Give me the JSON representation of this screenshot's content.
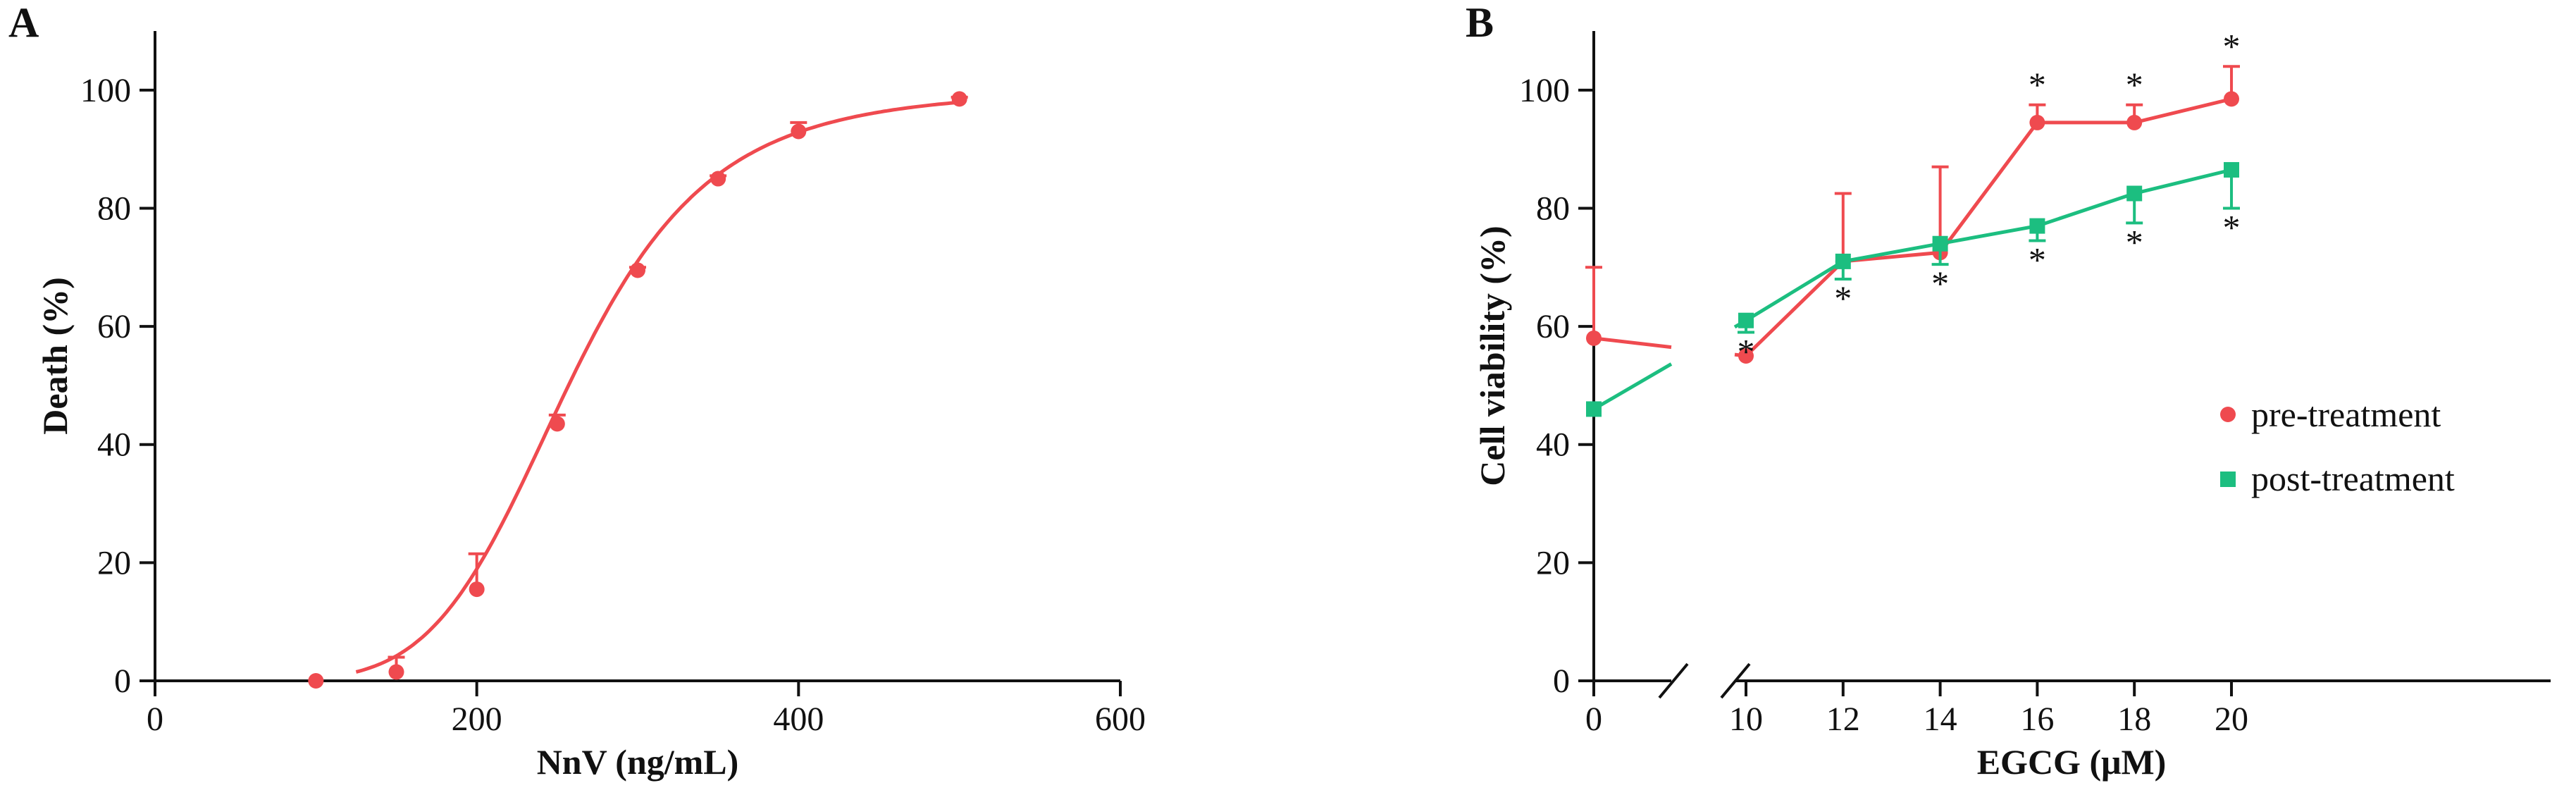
{
  "colors": {
    "pre": "#ef4a4f",
    "post": "#1cbe80",
    "axis": "#111111"
  },
  "chart_data": [
    {
      "panel": "A",
      "type": "line",
      "xlabel": "NnV (ng/mL)",
      "ylabel": "Death (%)",
      "xlim": [
        0,
        600
      ],
      "ylim": [
        0,
        110
      ],
      "xticks": [
        0,
        200,
        400,
        600
      ],
      "yticks": [
        0,
        20,
        40,
        60,
        80,
        100
      ],
      "fit_curve": {
        "model": "logistic",
        "bottom": 0,
        "top": 100,
        "ec50": 257,
        "hill": 5.8,
        "x_start": 125,
        "x_end": 500
      },
      "series": [
        {
          "x": [
            100,
            150,
            200,
            250,
            300,
            350,
            400,
            500
          ],
          "y": [
            0,
            1.5,
            15.5,
            43.5,
            69.5,
            85,
            93,
            98.5
          ],
          "error": [
            0,
            2.5,
            6,
            1.5,
            0.5,
            0.5,
            1.5,
            0.3
          ]
        }
      ]
    },
    {
      "panel": "B",
      "type": "line",
      "xlabel": "EGCG (μM)",
      "ylabel": "Cell viability (%)",
      "ylim": [
        0,
        110
      ],
      "xticks": [
        0,
        10,
        12,
        14,
        16,
        18,
        20
      ],
      "yticks": [
        0,
        20,
        40,
        60,
        80,
        100
      ],
      "axis_break_x": [
        0,
        10
      ],
      "legend_position": "right",
      "series": [
        {
          "name": "pre-treatment",
          "color": "#ef4a4f",
          "marker": "circle",
          "x": [
            0,
            10,
            12,
            14,
            16,
            18,
            20
          ],
          "y": [
            58,
            55,
            71,
            72.5,
            94.5,
            94.5,
            98.5
          ],
          "error": [
            12,
            0,
            11.5,
            14.5,
            3,
            3,
            5.5
          ],
          "error_dir": "up",
          "significant": [
            false,
            false,
            false,
            false,
            true,
            true,
            true
          ]
        },
        {
          "name": "post-treatment",
          "color": "#1cbe80",
          "marker": "square",
          "x": [
            0,
            10,
            12,
            14,
            16,
            18,
            20
          ],
          "y": [
            46,
            61,
            71,
            74,
            77,
            82.5,
            86.5
          ],
          "error": [
            0,
            2,
            3,
            3.5,
            2.5,
            5,
            6.5
          ],
          "error_dir": "down",
          "significant": [
            false,
            true,
            true,
            true,
            true,
            true,
            true
          ]
        }
      ],
      "significance_marker": "*"
    }
  ]
}
